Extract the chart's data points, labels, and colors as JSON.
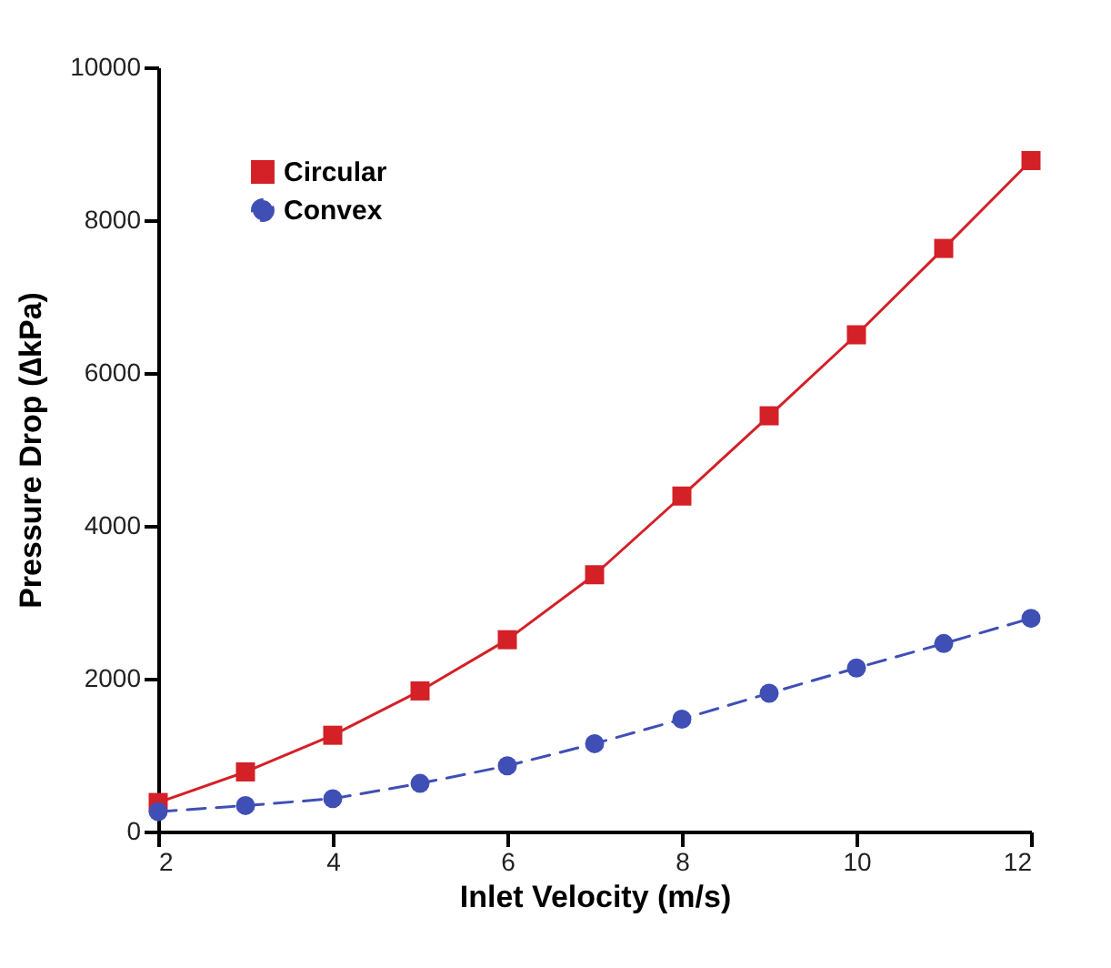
{
  "chart_data": {
    "type": "line",
    "xlabel": "Inlet Velocity (m/s)",
    "ylabel": "Pressure Drop (∆kPa)",
    "x": [
      2,
      3,
      4,
      5,
      6,
      7,
      8,
      9,
      10,
      11,
      12
    ],
    "series": [
      {
        "name": "Circular",
        "color": "#d42027",
        "marker": "square",
        "line_style": "solid",
        "values": [
          380,
          780,
          1260,
          1840,
          2510,
          3360,
          4390,
          5440,
          6500,
          7630,
          8780
        ]
      },
      {
        "name": "Convex",
        "color": "#3f4fb5",
        "marker": "circle",
        "line_style": "dashed",
        "values": [
          260,
          340,
          430,
          630,
          860,
          1150,
          1470,
          1810,
          2140,
          2460,
          2790
        ]
      }
    ],
    "xlim": [
      2,
      12
    ],
    "xticks": [
      2,
      4,
      6,
      8,
      10,
      12
    ],
    "ylim": [
      0,
      10000
    ],
    "yticks": [
      0,
      2000,
      4000,
      6000,
      8000,
      10000
    ],
    "grid": false,
    "legend": "top left"
  }
}
